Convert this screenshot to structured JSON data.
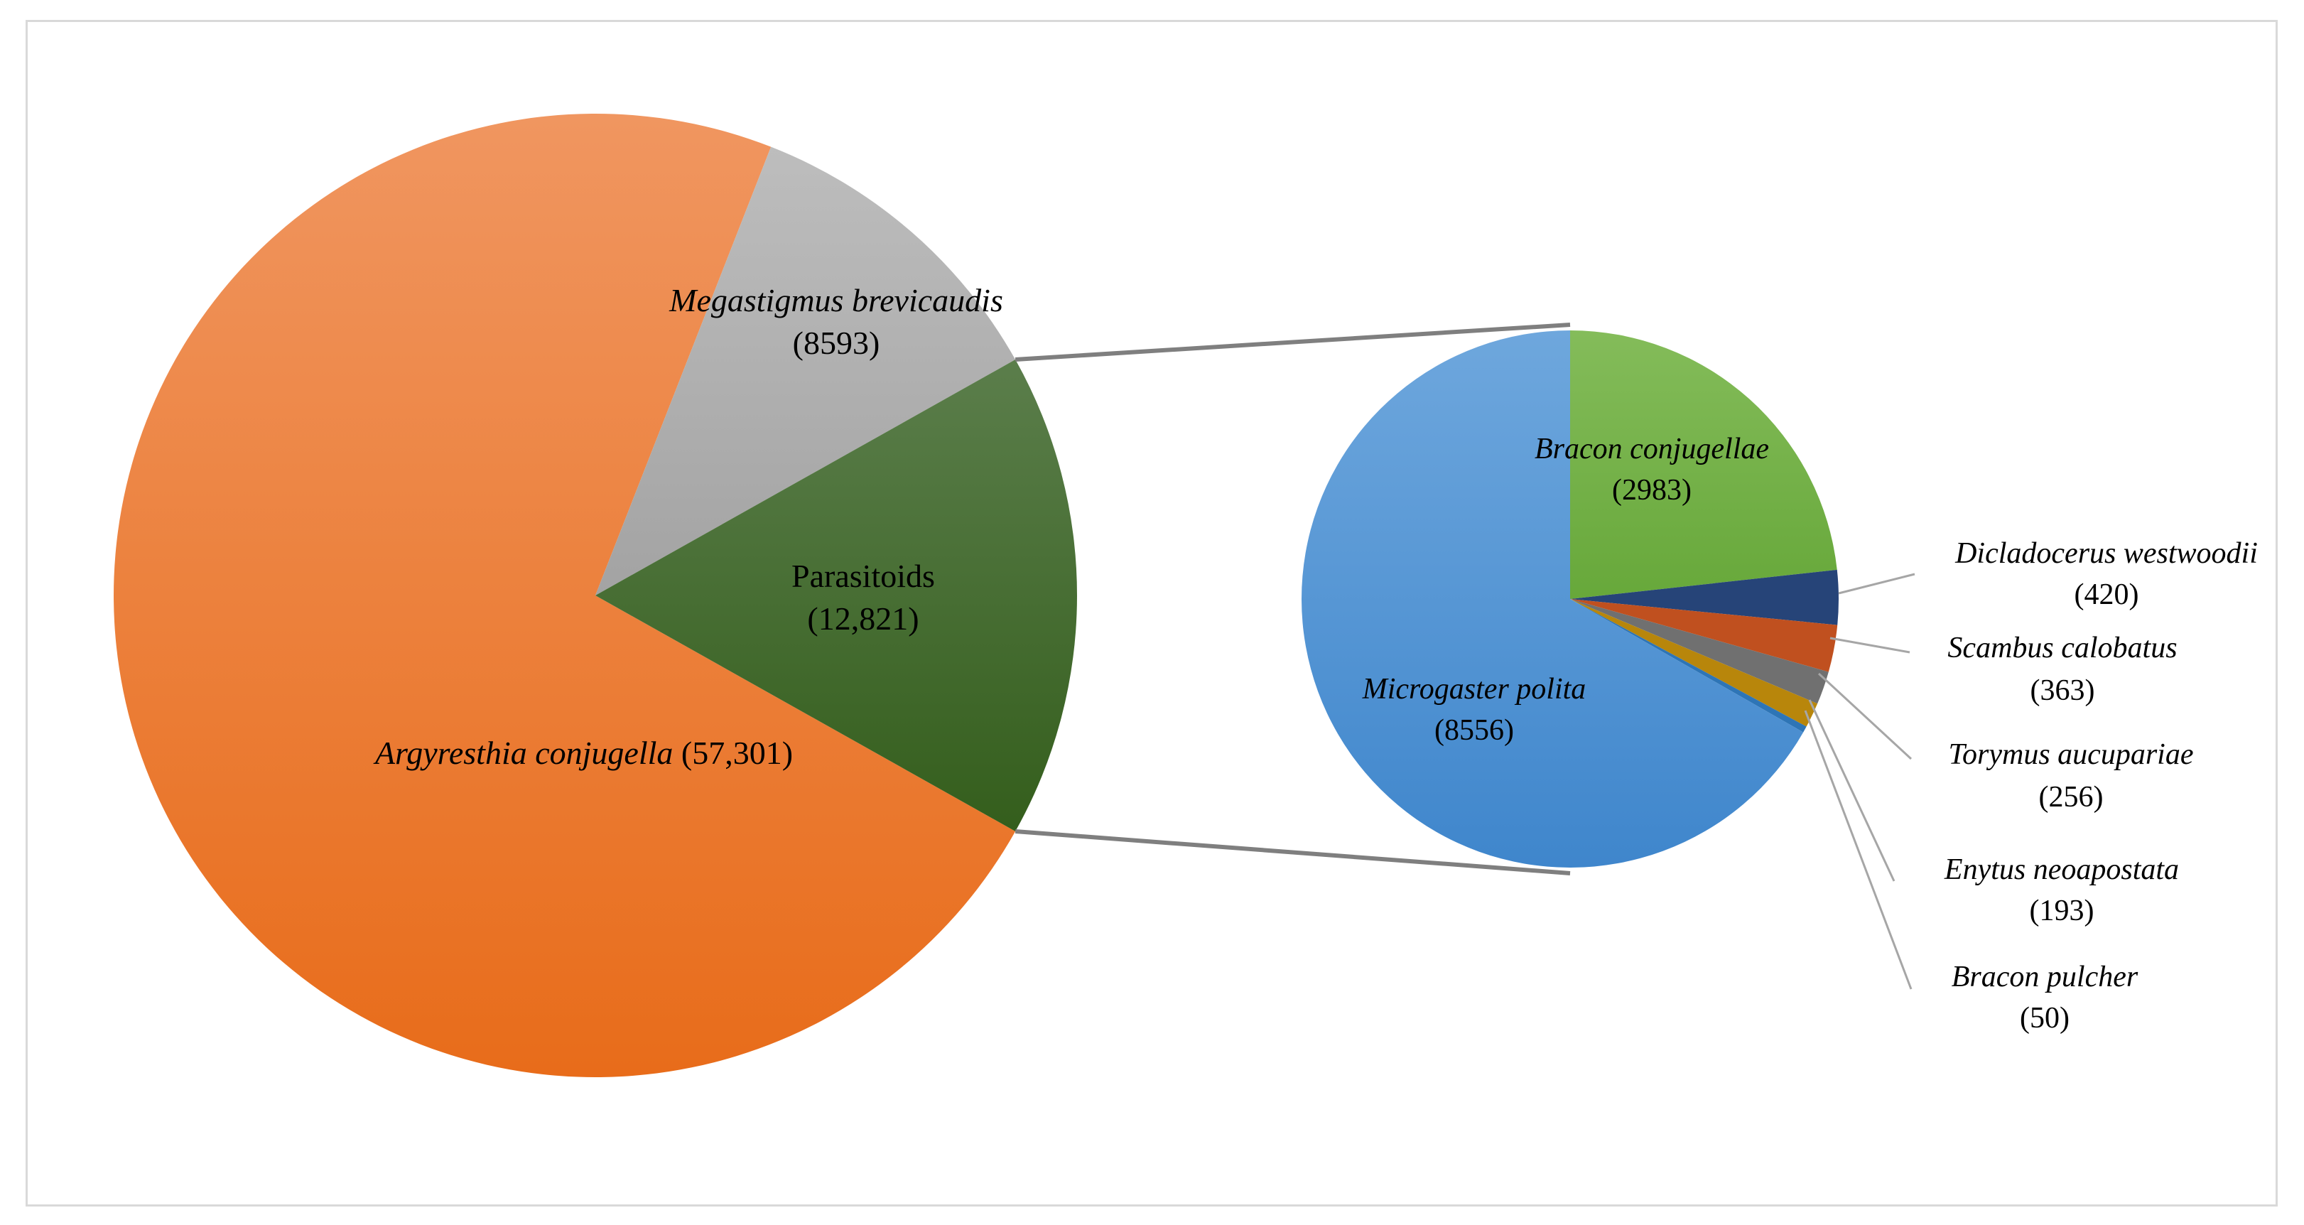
{
  "chart_data": {
    "type": "pie",
    "subtype": "pie-of-pie",
    "main_pie": {
      "slices": [
        {
          "name": "Argyresthia conjugella",
          "value": 57301,
          "value_label": "(57,301)",
          "color": "#ED7D31"
        },
        {
          "name": "Megastigmus brevicaudis",
          "value": 8593,
          "value_label": "(8593)",
          "color": "#A5A5A5"
        },
        {
          "name": "Parasitoids",
          "value": 12821,
          "value_label": "(12,821)",
          "color": "#426E2B"
        }
      ]
    },
    "secondary_pie": {
      "slices": [
        {
          "name": "Bracon conjugellae",
          "value": 2983,
          "value_label": "(2983)",
          "color": "#70AD47"
        },
        {
          "name": "Dicladocerus westwoodii",
          "value": 420,
          "value_label": "(420)",
          "color": "#264478"
        },
        {
          "name": "Scambus calobatus",
          "value": 363,
          "value_label": "(363)",
          "color": "#C0501F"
        },
        {
          "name": "Torymus aucupariae",
          "value": 256,
          "value_label": "(256)",
          "color": "#707070"
        },
        {
          "name": "Enytus neoapostata",
          "value": 193,
          "value_label": "(193)",
          "color": "#B8860B"
        },
        {
          "name": "Bracon pulcher",
          "value": 50,
          "value_label": "(50)",
          "color": "#2E75B6"
        },
        {
          "name": "Microgaster polita",
          "value": 8556,
          "value_label": "(8556)",
          "color": "#4A90D9"
        }
      ]
    },
    "connector_color": "#7f7f7f"
  }
}
